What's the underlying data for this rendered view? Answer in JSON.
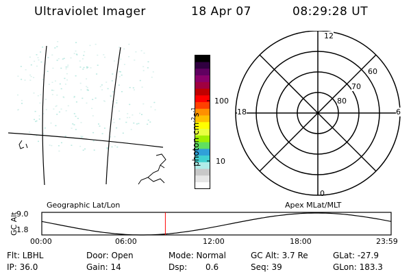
{
  "header": {
    "instrument": "Ultraviolet Imager",
    "date": "18 Apr 07",
    "time": "08:29:28 UT"
  },
  "geo_panel": {
    "label": "Geographic Lat/Lon"
  },
  "colorbar": {
    "unit_label": "photon cm",
    "unit_exp1": "-2",
    "unit_mid": "s",
    "unit_exp2": "-1",
    "tick_100": "100",
    "tick_10": "10",
    "colors": [
      "#ffffff",
      "#e6e6e6",
      "#c8c8c8",
      "#b0ece8",
      "#40d0d0",
      "#30a0d8",
      "#60e060",
      "#a0f000",
      "#e8ff40",
      "#ffff00",
      "#ffc000",
      "#ff9000",
      "#ff4000",
      "#ff0000",
      "#c00000",
      "#a00040",
      "#8a006a",
      "#600060",
      "#300040",
      "#000000"
    ]
  },
  "polar": {
    "label": "Apex MLat/MLT",
    "mlt_top": "12",
    "mlt_bottom": "0",
    "mlt_left": "18",
    "mlt_right": "6",
    "lat_60": "60",
    "lat_70": "70",
    "lat_80": "80"
  },
  "timeline": {
    "ylabel": "GC Alt",
    "ymax": "9.0",
    "ymin": "1.8",
    "ticks": [
      "00:00",
      "06:00",
      "12:00",
      "18:00",
      "23:59"
    ],
    "marker_hour": 8.49,
    "min_hour": 6.9,
    "color_marker": "#ff0000"
  },
  "info": {
    "flt": "Flt: LBHL",
    "door": "Door: Open",
    "mode": "Mode: Normal",
    "gcalt": "GC Alt: 3.7 Re",
    "glat": "GLat: -27.9",
    "ip": "IP: 36.0",
    "gain": "Gain: 14",
    "dsp_label": "Dsp:",
    "dsp_val": "0.6",
    "seq": "Seq: 39",
    "glon": "GLon: 183.3"
  }
}
